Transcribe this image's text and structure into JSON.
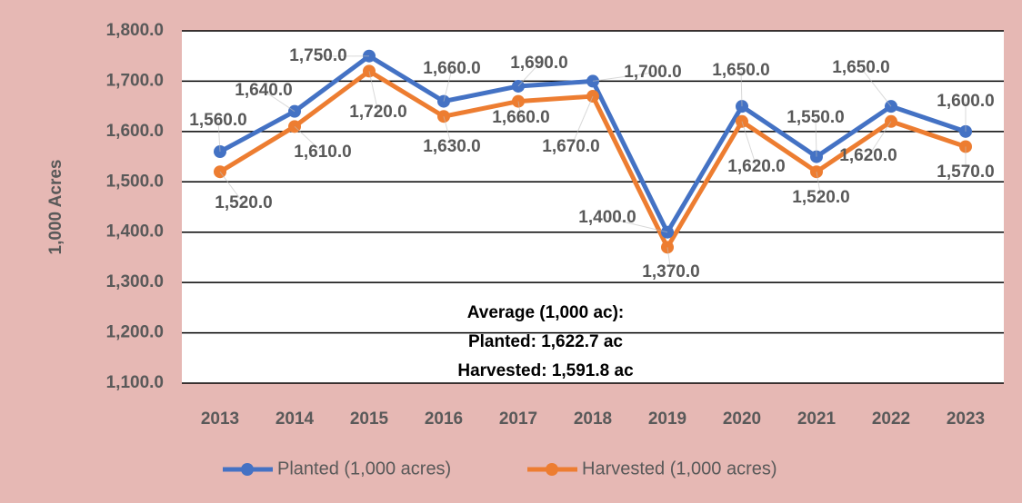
{
  "chart_data": {
    "type": "line",
    "y_label": "1,000 Acres",
    "categories": [
      "2013",
      "2014",
      "2015",
      "2016",
      "2017",
      "2018",
      "2019",
      "2020",
      "2021",
      "2022",
      "2023"
    ],
    "series": [
      {
        "name": "Planted (1,000 acres)",
        "color": "#4472c4",
        "values": [
          1560,
          1640,
          1750,
          1660,
          1690,
          1700,
          1400,
          1650,
          1550,
          1650,
          1600
        ],
        "value_labels": [
          "1,560.0",
          "1,640.0",
          "1,750.0",
          "1,660.0",
          "1,690.0",
          "1,700.0",
          "1,400.0",
          "1,650.0",
          "1,550.0",
          "1,650.0",
          "1,600.0"
        ]
      },
      {
        "name": "Harvested (1,000 acres)",
        "color": "#ed7d31",
        "values": [
          1520,
          1610,
          1720,
          1630,
          1660,
          1670,
          1370,
          1620,
          1520,
          1620,
          1570
        ],
        "value_labels": [
          "1,520.0",
          "1,610.0",
          "1,720.0",
          "1,630.0",
          "1,660.0",
          "1,670.0",
          "1,370.0",
          "1,620.0",
          "1,520.0",
          "1,620.0",
          "1,570.0"
        ]
      }
    ],
    "ylim": [
      1100,
      1800
    ],
    "yticks": [
      {
        "value": 1100,
        "label": "1,100.0"
      },
      {
        "value": 1200,
        "label": "1,200.0"
      },
      {
        "value": 1300,
        "label": "1,300.0"
      },
      {
        "value": 1400,
        "label": "1,400.0"
      },
      {
        "value": 1500,
        "label": "1,500.0"
      },
      {
        "value": 1600,
        "label": "1,600.0"
      },
      {
        "value": 1700,
        "label": "1,700.0"
      },
      {
        "value": 1800,
        "label": "1,800.0"
      }
    ],
    "grid": true,
    "legend": "bottom",
    "annotations": [
      "Average (1,000 ac):",
      "Planted: 1,622.7 ac",
      "Harvested: 1,591.8 ac"
    ]
  }
}
